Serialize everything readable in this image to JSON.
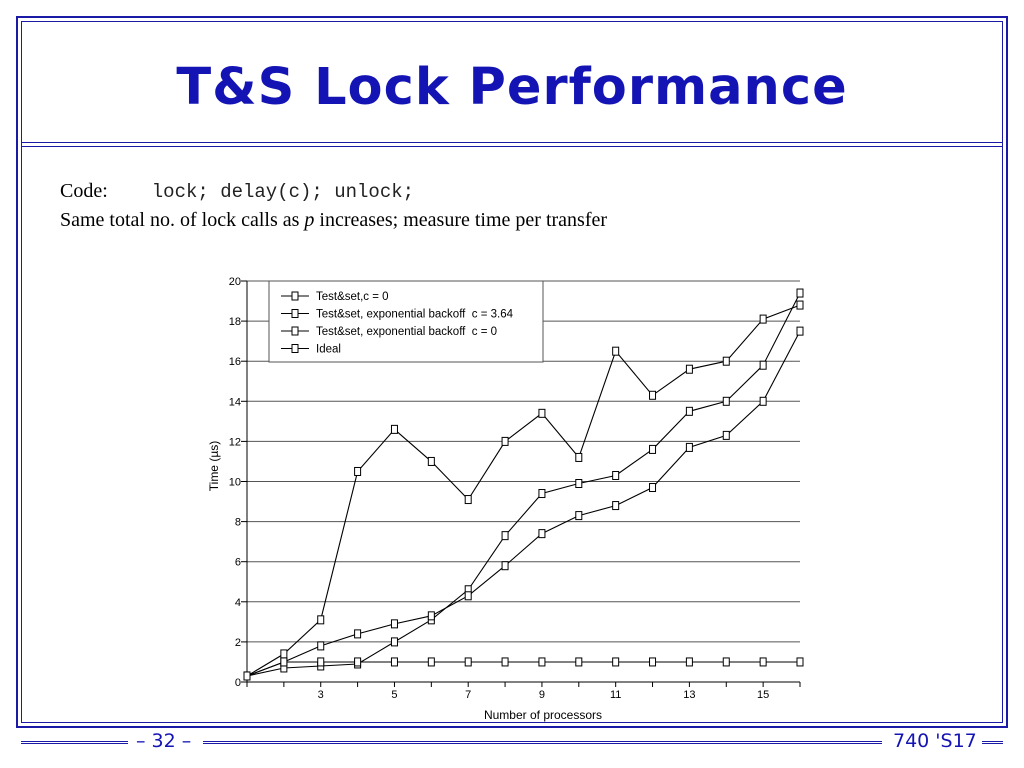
{
  "slide": {
    "title": "T&S Lock Performance",
    "code_label": "Code:",
    "code_text": "lock; delay(c); unlock;",
    "desc_before": "Same total no. of lock calls as ",
    "desc_var": "p",
    "desc_after": " increases; measure time per transfer",
    "page_number": "– 32 –",
    "course": "740 'S17",
    "colors": {
      "accent": "#1414b4",
      "frame": "#1a1aa6"
    }
  },
  "chart_data": {
    "type": "line",
    "xlabel": "Number of processors",
    "ylabel": "Time (µs)",
    "xlim": [
      1,
      16
    ],
    "ylim": [
      0,
      20
    ],
    "x_ticks": [
      3,
      5,
      7,
      9,
      11,
      13,
      15
    ],
    "y_ticks": [
      0,
      2,
      4,
      6,
      8,
      10,
      12,
      14,
      16,
      18,
      20
    ],
    "grid": "horizontal",
    "legend_position": "top-left",
    "series": [
      {
        "name": "Test&set,c = 0",
        "x": [
          1,
          2,
          3,
          4,
          5,
          6,
          7,
          8,
          9,
          10,
          11,
          12,
          13,
          14,
          15,
          16
        ],
        "values": [
          0.3,
          1.4,
          3.1,
          10.5,
          12.6,
          11.0,
          9.1,
          12.0,
          13.4,
          11.2,
          16.5,
          14.3,
          15.6,
          16.0,
          18.1,
          18.8
        ]
      },
      {
        "name": "Test&set, exponential backoff  c = 3.64",
        "x": [
          1,
          2,
          3,
          4,
          5,
          6,
          7,
          8,
          9,
          10,
          11,
          12,
          13,
          14,
          15,
          16
        ],
        "values": [
          0.3,
          0.7,
          0.8,
          0.9,
          2.0,
          3.1,
          4.6,
          7.3,
          9.4,
          9.9,
          10.3,
          11.6,
          13.5,
          14.0,
          15.8,
          19.4
        ]
      },
      {
        "name": "Test&set, exponential backoff  c = 0",
        "x": [
          1,
          2,
          3,
          4,
          5,
          6,
          7,
          8,
          9,
          10,
          11,
          12,
          13,
          14,
          15,
          16
        ],
        "values": [
          0.3,
          1.0,
          1.8,
          2.4,
          2.9,
          3.3,
          4.3,
          5.8,
          7.4,
          8.3,
          8.8,
          9.7,
          11.7,
          12.3,
          14.0,
          17.5
        ]
      },
      {
        "name": "Ideal",
        "x": [
          1,
          2,
          3,
          4,
          5,
          6,
          7,
          8,
          9,
          10,
          11,
          12,
          13,
          14,
          15,
          16
        ],
        "values": [
          0.3,
          1.0,
          1.0,
          1.0,
          1.0,
          1.0,
          1.0,
          1.0,
          1.0,
          1.0,
          1.0,
          1.0,
          1.0,
          1.0,
          1.0,
          1.0
        ]
      }
    ]
  }
}
